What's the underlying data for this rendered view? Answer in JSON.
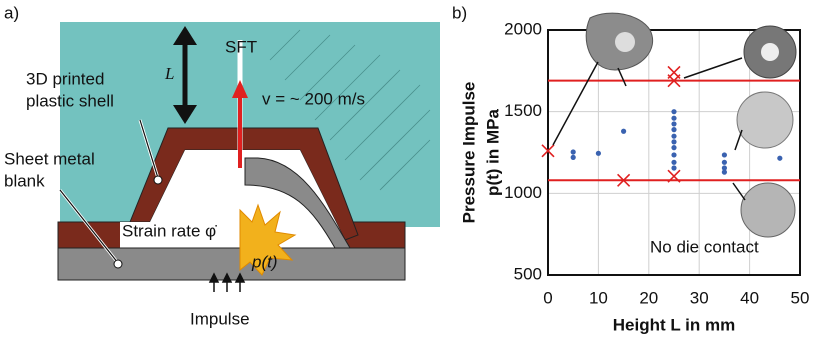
{
  "diagram": {
    "panel_label": "a)",
    "length_symbol": "L",
    "sft": "SFT",
    "velocity": "v = ~ 200 m/s",
    "shell": [
      "3D printed",
      "plastic shell"
    ],
    "blank": [
      "Sheet metal",
      "blank"
    ],
    "strain_rate": "Strain rate φ̇",
    "pressure": "p(t)",
    "impulse": "Impulse"
  },
  "chart_data": {
    "type": "scatter",
    "panel_label": "b)",
    "xlabel": "Height L in mm",
    "ylabel": [
      "Pressure Impulse",
      "p(t) in MPa"
    ],
    "annotation": "No die contact",
    "xlim": [
      0,
      50
    ],
    "ylim": [
      500,
      2000
    ],
    "xticks": [
      0,
      10,
      20,
      30,
      40,
      50
    ],
    "yticks": [
      500,
      1000,
      1500,
      2000
    ],
    "grid": true,
    "hlines": {
      "color": "#e02020",
      "values": [
        1690,
        1080
      ]
    },
    "series": [
      {
        "color": "#3a62b0",
        "marker": "dot",
        "x": [
          5,
          5,
          10,
          15,
          25,
          25,
          25,
          25,
          25,
          25,
          25,
          25,
          25,
          25,
          35,
          35,
          35,
          35,
          46
        ],
        "values": [
          1253,
          1220,
          1245,
          1380,
          1500,
          1460,
          1425,
          1390,
          1350,
          1315,
          1280,
          1235,
          1190,
          1155,
          1235,
          1190,
          1155,
          1130,
          1215
        ]
      },
      {
        "color": "#e02020",
        "marker": "cross",
        "x": [
          0,
          15,
          25,
          25,
          25
        ],
        "values": [
          1260,
          1080,
          1740,
          1690,
          1105
        ]
      }
    ]
  }
}
